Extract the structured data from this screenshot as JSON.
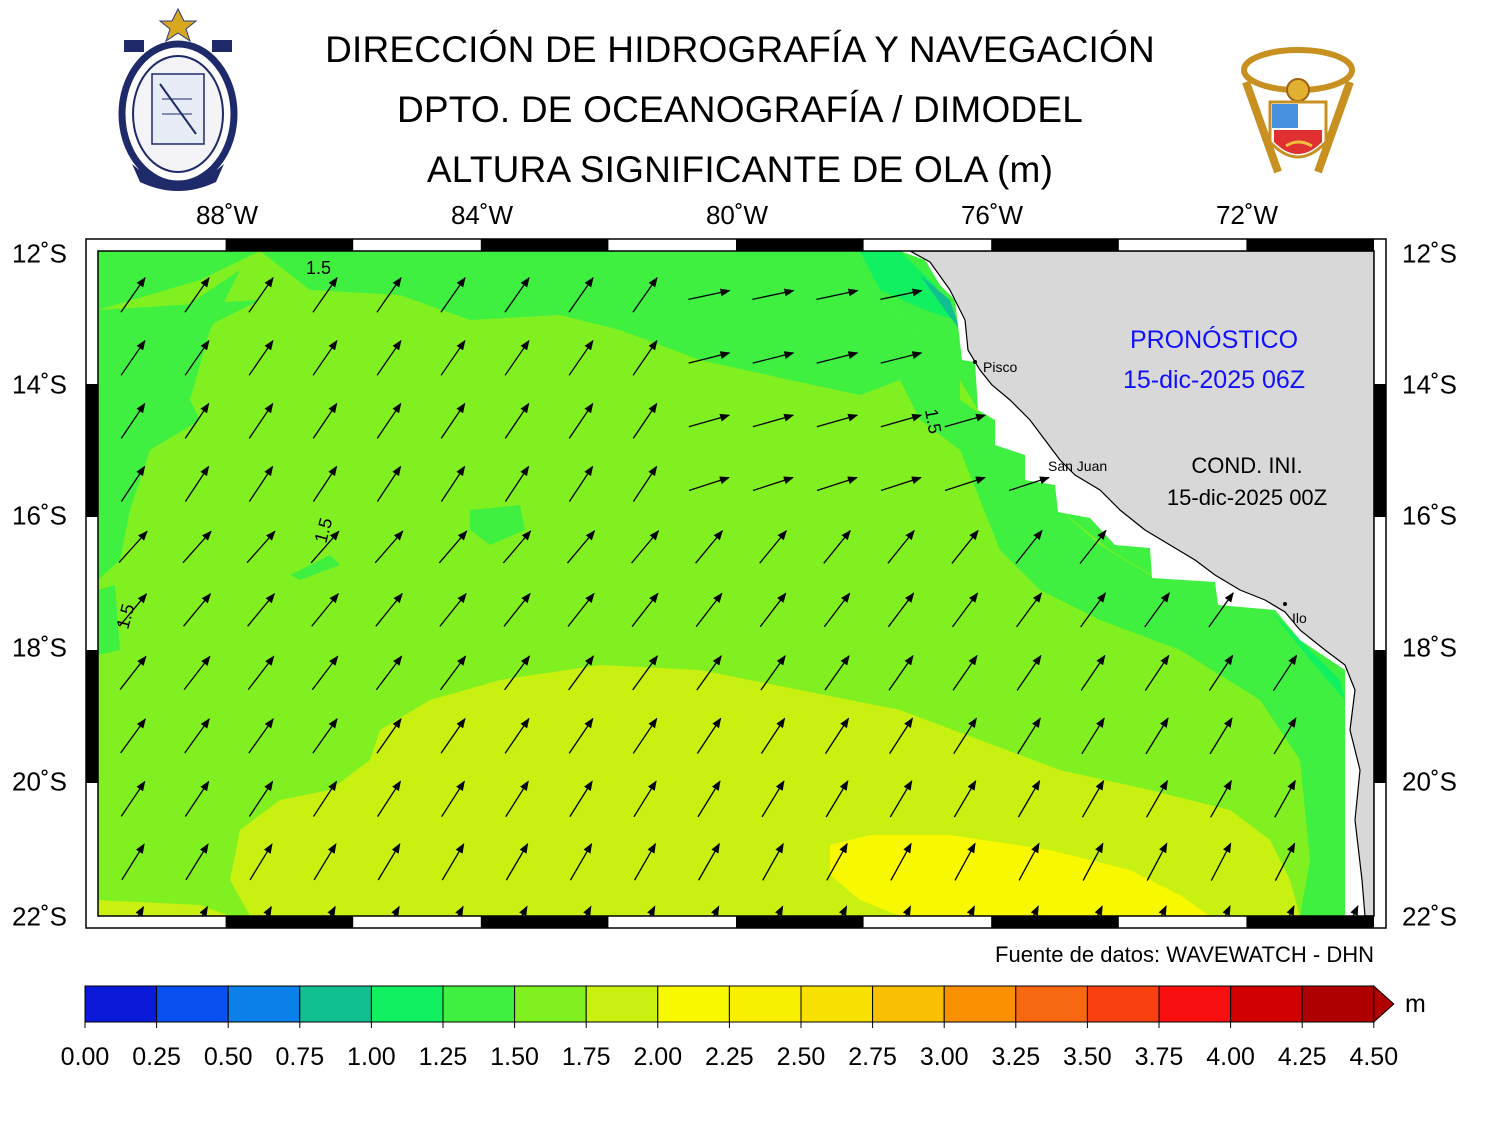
{
  "header": {
    "title_line1": "DIRECCIÓN DE HIDROGRAFÍA Y NAVEGACIÓN",
    "title_line2": "DPTO. DE OCEANOGRAFÍA / DIMODEL",
    "title_line3": "ALTURA SIGNIFICANTE DE OLA (m)"
  },
  "map": {
    "lon_labels": [
      "88˚W",
      "84˚W",
      "80˚W",
      "76˚W",
      "72˚W"
    ],
    "lat_labels": [
      "12˚S",
      "14˚S",
      "16˚S",
      "18˚S",
      "20˚S",
      "22˚S"
    ],
    "extent": {
      "lon_min": -90,
      "lon_max": -70,
      "lat_min": -22,
      "lat_max": -12
    },
    "contour_labels": [
      "1.5",
      "1.5",
      "1.5",
      "1.5"
    ],
    "places": [
      "Pisco",
      "San Juan",
      "Ilo"
    ],
    "forecast_label": "PRONÓSTICO",
    "forecast_time": "15-dic-2025 06Z",
    "init_label": "COND. INI.",
    "init_time": "15-dic-2025 00Z",
    "forecast_color": "#1010ff",
    "land_color": "#d8d8d8"
  },
  "source_text": "Fuente de datos: WAVEWATCH - DHN",
  "colorbar": {
    "unit": "m",
    "tick_labels": [
      "0.00",
      "0.25",
      "0.50",
      "0.75",
      "1.00",
      "1.25",
      "1.50",
      "1.75",
      "2.00",
      "2.25",
      "2.50",
      "2.75",
      "3.00",
      "3.25",
      "3.50",
      "3.75",
      "4.00",
      "4.25",
      "4.50"
    ],
    "colors": [
      "#0a1ad8",
      "#0a50f0",
      "#0a80e8",
      "#10c090",
      "#10f060",
      "#40f040",
      "#80f020",
      "#c8f010",
      "#f8f800",
      "#f8f000",
      "#f8e000",
      "#f8c000",
      "#f89000",
      "#f86810",
      "#f84010",
      "#f81010",
      "#d00000",
      "#b00000"
    ]
  }
}
